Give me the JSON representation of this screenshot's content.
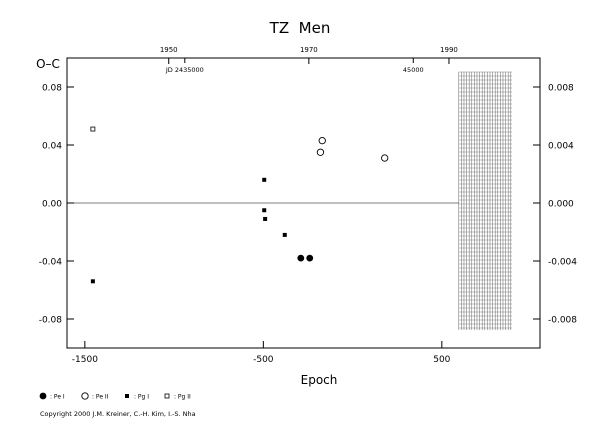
{
  "chart_data": {
    "type": "scatter",
    "title": "TZ  Men",
    "xlabel": "Epoch",
    "ylabel": "O–C",
    "xlim": [
      -1600,
      1050
    ],
    "ylim": [
      -0.1,
      0.1
    ],
    "right_ylim": [
      -0.01,
      0.01
    ],
    "x_ticks": [
      -1500,
      -500,
      500
    ],
    "y_ticks": [
      0.08,
      0.04,
      0.0,
      -0.04,
      -0.08
    ],
    "y_tick_labels": [
      "0.08",
      "0.04",
      "0.00",
      "-0.04",
      "-0.08"
    ],
    "right_ticks": [
      0.008,
      0.004,
      0.0,
      -0.004,
      -0.008
    ],
    "right_tick_labels": [
      "0.008",
      "0.004",
      "0.000",
      "-0.004",
      "-0.008"
    ],
    "top_year_axis": {
      "labels": [
        "1950",
        "1970",
        "1990"
      ],
      "epochs": [
        -1030,
        -245,
        540
      ]
    },
    "jd_axis": {
      "labels": [
        "JD 2435000",
        "45000"
      ],
      "epochs": [
        -940,
        340
      ]
    },
    "zero_line": 0.0,
    "hatched_region": {
      "x_from": 595,
      "x_to": 1050
    },
    "series": [
      {
        "name": ": Pe I",
        "marker": "filled-circle",
        "points": [
          [
            -290,
            -0.038
          ],
          [
            -240,
            -0.038
          ]
        ]
      },
      {
        "name": ": Pe II",
        "marker": "open-circle",
        "points": [
          [
            -170,
            0.043
          ],
          [
            -180,
            0.035
          ],
          [
            180,
            0.031
          ]
        ]
      },
      {
        "name": ": Pg I",
        "marker": "filled-square",
        "points": [
          [
            -1455,
            -0.054
          ],
          [
            -495,
            0.016
          ],
          [
            -495,
            -0.005
          ],
          [
            -490,
            -0.011
          ],
          [
            -380,
            -0.022
          ]
        ]
      },
      {
        "name": ": Pg II",
        "marker": "open-square",
        "points": [
          [
            -1455,
            0.051
          ]
        ]
      }
    ],
    "legend_position": "bottom-left"
  },
  "copyright": "Copyright 2000 J.M. Kreiner, C.-H. Kim, I.-S. Nha"
}
